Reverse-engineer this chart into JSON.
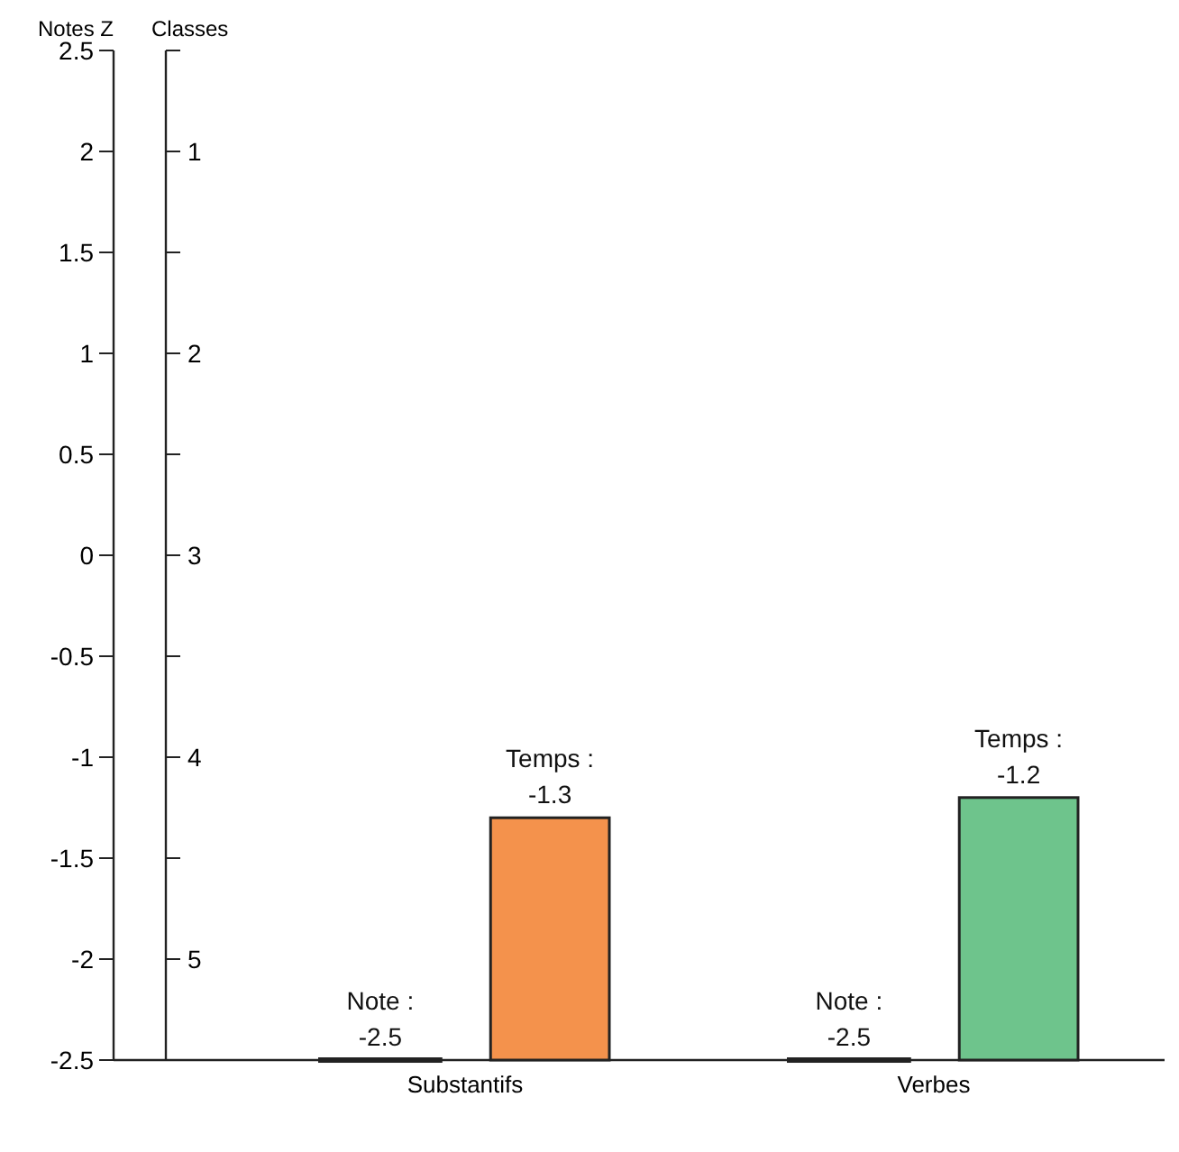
{
  "chart_data": {
    "type": "bar",
    "ylabel": "Notes Z",
    "y2label": "Classes",
    "categories": [
      "Substantifs",
      "Verbes"
    ],
    "series": [
      {
        "color": "#222222",
        "base": [
          -2.5,
          -2.5
        ],
        "values": [
          0,
          0
        ],
        "value_labels": [
          "Note :\n-2.5",
          "Note :\n-2.5"
        ]
      },
      {
        "colors": [
          "#f4924c",
          "#6ec48c"
        ],
        "base": [
          -2.5,
          -2.5
        ],
        "values": [
          1.2,
          1.3
        ],
        "value_labels": [
          "Temps :\n-1.3",
          "Temps :\n-1.2"
        ]
      }
    ],
    "ylim": [
      -2.5,
      2.5
    ],
    "yticks": [
      -2.5,
      -2,
      -1.5,
      -1,
      -0.5,
      0,
      0.5,
      1,
      1.5,
      2,
      2.5
    ],
    "y2lim": [
      5.5,
      0.5
    ],
    "y2ticks": [
      {
        "value": 5.5,
        "label": null
      },
      5,
      {
        "value": 4.5,
        "label": null
      },
      4,
      {
        "value": 3.5,
        "label": null
      },
      3,
      {
        "value": 2.5,
        "label": null
      },
      2,
      {
        "value": 1.5,
        "label": null
      },
      1,
      {
        "value": 0.5,
        "label": null
      }
    ],
    "grid": false
  }
}
